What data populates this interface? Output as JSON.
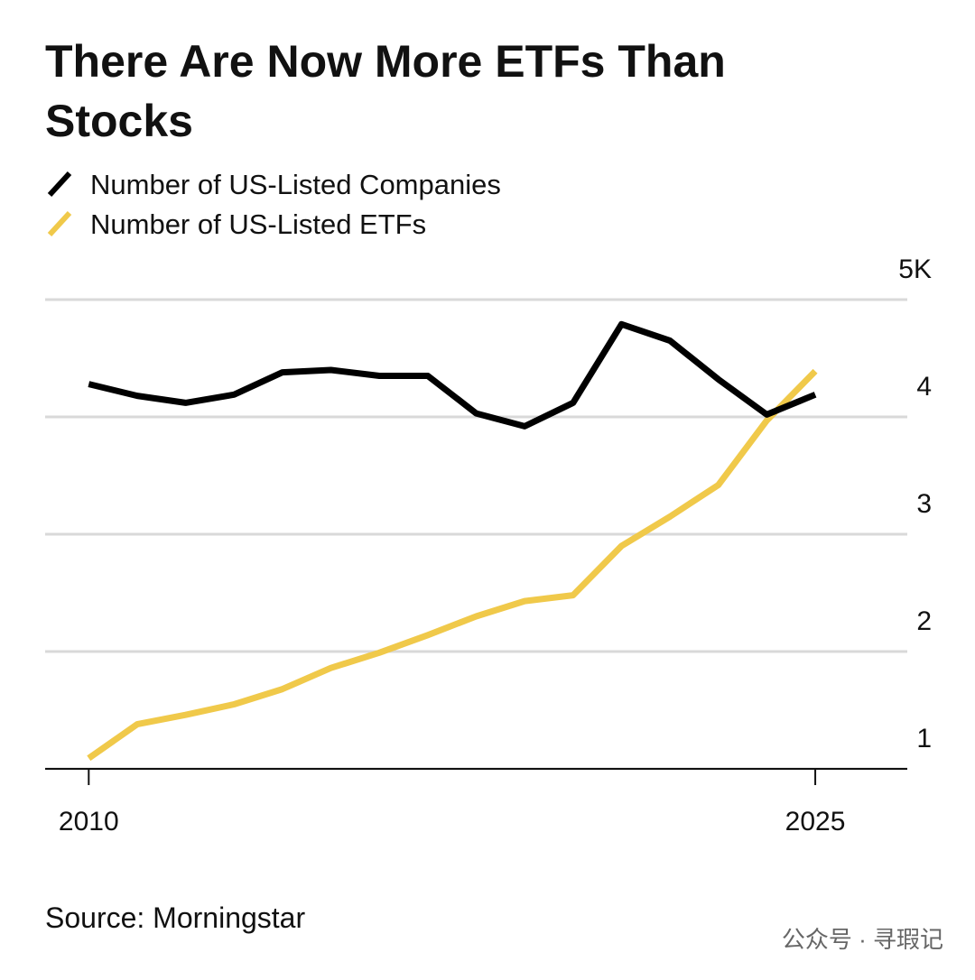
{
  "chart_data": {
    "type": "line",
    "title": "There Are Now More ETFs Than Stocks",
    "source": "Source: Morningstar",
    "watermark": "公众号 · 寻瑕记",
    "x": [
      2010,
      2011,
      2012,
      2013,
      2014,
      2015,
      2016,
      2017,
      2018,
      2019,
      2020,
      2021,
      2022,
      2023,
      2024,
      2025
    ],
    "series": [
      {
        "name": "Number of US-Listed Companies",
        "color": "#000000",
        "values": [
          4.28,
          4.18,
          4.12,
          4.19,
          4.38,
          4.4,
          4.35,
          4.35,
          4.03,
          3.92,
          4.12,
          4.79,
          4.65,
          4.32,
          4.02,
          4.19
        ]
      },
      {
        "name": "Number of US-Listed ETFs",
        "color": "#f0c94a",
        "values": [
          1.09,
          1.38,
          1.46,
          1.55,
          1.68,
          1.86,
          1.99,
          2.14,
          2.3,
          2.43,
          2.48,
          2.9,
          3.15,
          3.42,
          3.97,
          4.39
        ]
      }
    ],
    "xlim": [
      2009.1,
      2026.9
    ],
    "xticks": [
      2010,
      2025
    ],
    "ylim": [
      1,
      5
    ],
    "yticks": [
      1,
      2,
      3,
      4,
      {
        "value": 5,
        "label": "5K"
      }
    ],
    "grid": true
  }
}
